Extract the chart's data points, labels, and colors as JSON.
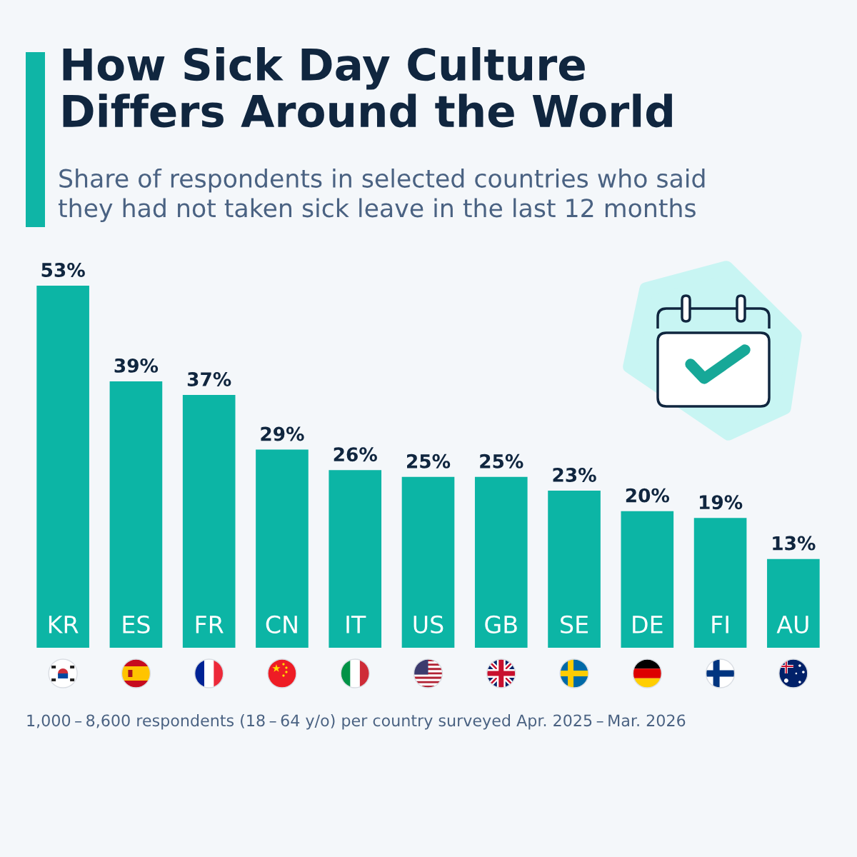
{
  "chart_data": {
    "type": "bar",
    "title": "How Sick Day Culture\nDiffers Around the World",
    "subtitle": "Share of respondents in selected countries who said\nthey had not taken sick leave in the last 12 months",
    "categories": [
      "KR",
      "ES",
      "FR",
      "CN",
      "IT",
      "US",
      "GB",
      "SE",
      "DE",
      "FI",
      "AU"
    ],
    "values": [
      53,
      39,
      37,
      29,
      26,
      25,
      25,
      23,
      20,
      19,
      13
    ],
    "value_labels": [
      "53%",
      "39%",
      "37%",
      "29%",
      "26%",
      "25%",
      "25%",
      "23%",
      "20%",
      "19%",
      "13%"
    ],
    "color": "#0cb5a5",
    "ylim": [
      0,
      53
    ],
    "tick_labels": "x",
    "annotations": [
      "1,000 – 8,600 respondents (18 – 64 y/o) per country surveyed Apr. 2025 – Mar. 2026"
    ]
  }
}
